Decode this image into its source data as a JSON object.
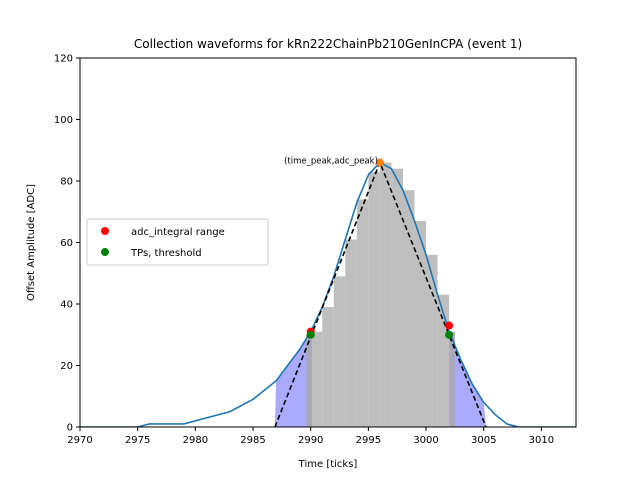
{
  "chart_data": {
    "type": "line",
    "title": "Collection waveforms for kRn222ChainPb210GenInCPA (event 1)",
    "xlabel": "Time [ticks]",
    "ylabel": "Offset Amplitude [ADC]",
    "xlim": [
      2970,
      3013
    ],
    "ylim": [
      0,
      120
    ],
    "xticks": [
      2970,
      2975,
      2980,
      2985,
      2990,
      2995,
      3000,
      3005,
      3010
    ],
    "yticks": [
      0,
      20,
      40,
      60,
      80,
      100,
      120
    ],
    "grid": false,
    "legend_position": "center-left",
    "colors": {
      "waveform": "#1f77b4",
      "bars": "#bfbfbf",
      "fill": "#aaaaff",
      "red": "#ff0000",
      "green": "#008000",
      "orange": "#ff7f0e",
      "dashed": "#000000"
    },
    "waveform": {
      "x": [
        2970,
        2975,
        2976,
        2979,
        2983,
        2985,
        2987,
        2989,
        2990,
        2991,
        2992,
        2993,
        2994,
        2995,
        2996,
        2997,
        2998,
        2999,
        3000,
        3001,
        3002,
        3003,
        3004,
        3005,
        3006,
        3007,
        3008,
        3010,
        3013
      ],
      "y": [
        0,
        0,
        1,
        1,
        5,
        9,
        15,
        25,
        31,
        39,
        49,
        61,
        73,
        82,
        86,
        84,
        77,
        67,
        56,
        43,
        31,
        22,
        14,
        8,
        4,
        1,
        0,
        0,
        0
      ]
    },
    "bars": {
      "x": [
        2990,
        2991,
        2992,
        2993,
        2994,
        2995,
        2996,
        2997,
        2998,
        2999,
        3000,
        3001
      ],
      "values": [
        31,
        39,
        49,
        61,
        74,
        83,
        86,
        84,
        77,
        67,
        56,
        43
      ]
    },
    "triangle": {
      "x": [
        2986.9,
        2996,
        3005.2
      ],
      "y": [
        0,
        86,
        0
      ]
    },
    "peak_point": {
      "x": 2996,
      "y": 86
    },
    "adc_integral_range": {
      "x": [
        2990,
        3002
      ],
      "y": [
        31,
        33
      ]
    },
    "tps_threshold": {
      "x": [
        2990,
        3002
      ],
      "y": [
        30,
        30
      ]
    },
    "annotation": {
      "text": "(time_peak,adc_peak)",
      "x": 2996,
      "y": 86
    },
    "legend": [
      {
        "label": "adc_integral range",
        "color": "#ff0000"
      },
      {
        "label": "TPs, threshold",
        "color": "#008000"
      }
    ]
  }
}
